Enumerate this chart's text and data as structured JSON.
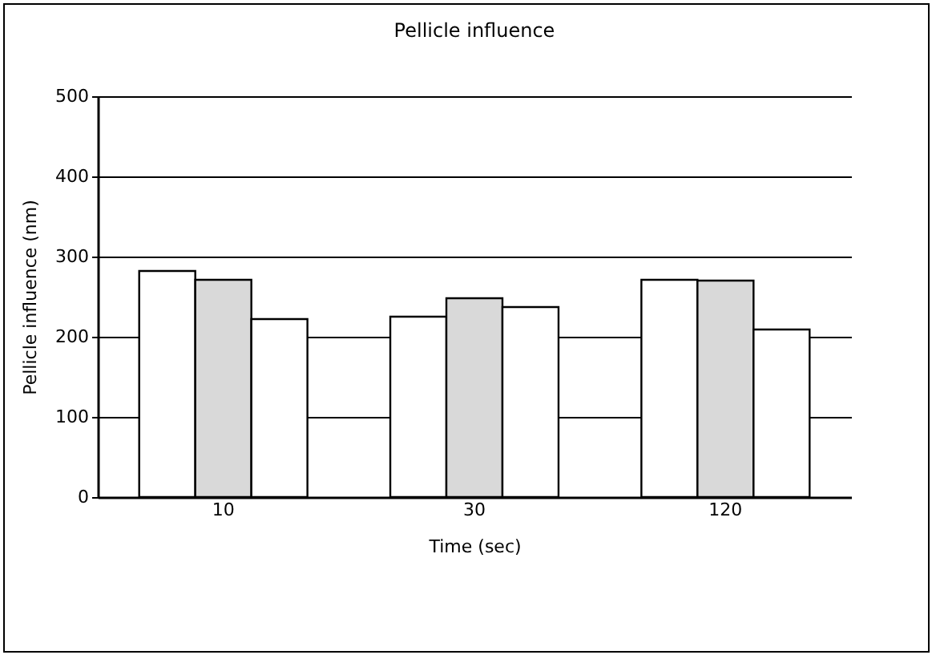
{
  "chart_data": {
    "type": "bar",
    "title": "Pellicle influence",
    "xlabel": "Time  (sec)",
    "ylabel": "Pellicle influence (nm)",
    "categories": [
      "10",
      "30",
      "120"
    ],
    "series": [
      {
        "color": "#ffffff",
        "values": [
          282,
          225,
          271
        ]
      },
      {
        "color": "#d9d9d9",
        "values": [
          271,
          248,
          270
        ]
      },
      {
        "color": "#ffffff",
        "values": [
          222,
          237,
          209
        ]
      }
    ],
    "ylim": [
      0,
      500
    ],
    "yticks": [
      0,
      100,
      200,
      300,
      400,
      500
    ],
    "grid": "y",
    "legend": false
  }
}
